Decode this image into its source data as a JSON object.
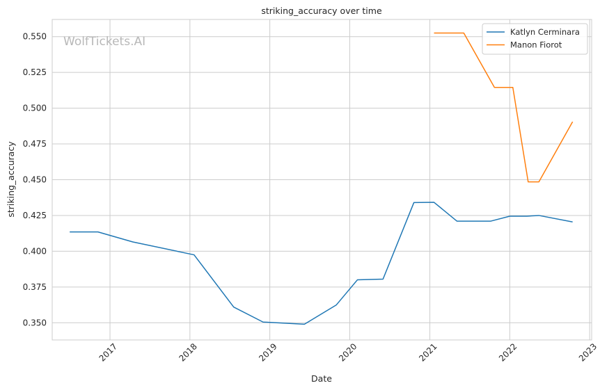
{
  "chart_data": {
    "type": "line",
    "title": "striking_accuracy over time",
    "xlabel": "Date",
    "ylabel": "striking_accuracy",
    "watermark": "WolfTickets.AI",
    "x_ticks": [
      "2017",
      "2018",
      "2019",
      "2020",
      "2021",
      "2022",
      "2023"
    ],
    "y_ticks": [
      "0.350",
      "0.375",
      "0.400",
      "0.425",
      "0.450",
      "0.475",
      "0.500",
      "0.525",
      "0.550"
    ],
    "xlim": [
      "2016-04-12",
      "2023-01-10"
    ],
    "ylim": [
      0.338,
      0.562
    ],
    "grid": true,
    "legend_position": "top-right",
    "series": [
      {
        "name": "Katlyn Cerminara",
        "color": "#1f77b4",
        "points": [
          {
            "x": "2016-07-01",
            "y": 0.4135
          },
          {
            "x": "2016-11-07",
            "y": 0.4135
          },
          {
            "x": "2017-04-15",
            "y": 0.4065
          },
          {
            "x": "2018-01-20",
            "y": 0.3975
          },
          {
            "x": "2018-07-20",
            "y": 0.361
          },
          {
            "x": "2018-12-01",
            "y": 0.3505
          },
          {
            "x": "2019-06-08",
            "y": 0.349
          },
          {
            "x": "2019-11-01",
            "y": 0.3625
          },
          {
            "x": "2020-02-05",
            "y": 0.38
          },
          {
            "x": "2020-06-01",
            "y": 0.3805
          },
          {
            "x": "2020-10-20",
            "y": 0.434
          },
          {
            "x": "2021-01-20",
            "y": 0.4342
          },
          {
            "x": "2021-05-05",
            "y": 0.421
          },
          {
            "x": "2021-10-05",
            "y": 0.421
          },
          {
            "x": "2022-01-01",
            "y": 0.4245
          },
          {
            "x": "2022-03-20",
            "y": 0.4245
          },
          {
            "x": "2022-05-14",
            "y": 0.425
          },
          {
            "x": "2022-10-15",
            "y": 0.4205
          }
        ]
      },
      {
        "name": "Manon Fiorot",
        "color": "#ff7f0e",
        "points": [
          {
            "x": "2021-01-20",
            "y": 0.5525
          },
          {
            "x": "2021-06-05",
            "y": 0.5525
          },
          {
            "x": "2021-10-23",
            "y": 0.5145
          },
          {
            "x": "2022-01-15",
            "y": 0.5145
          },
          {
            "x": "2022-03-26",
            "y": 0.4485
          },
          {
            "x": "2022-05-14",
            "y": 0.4485
          },
          {
            "x": "2022-10-15",
            "y": 0.4905
          }
        ]
      }
    ]
  }
}
